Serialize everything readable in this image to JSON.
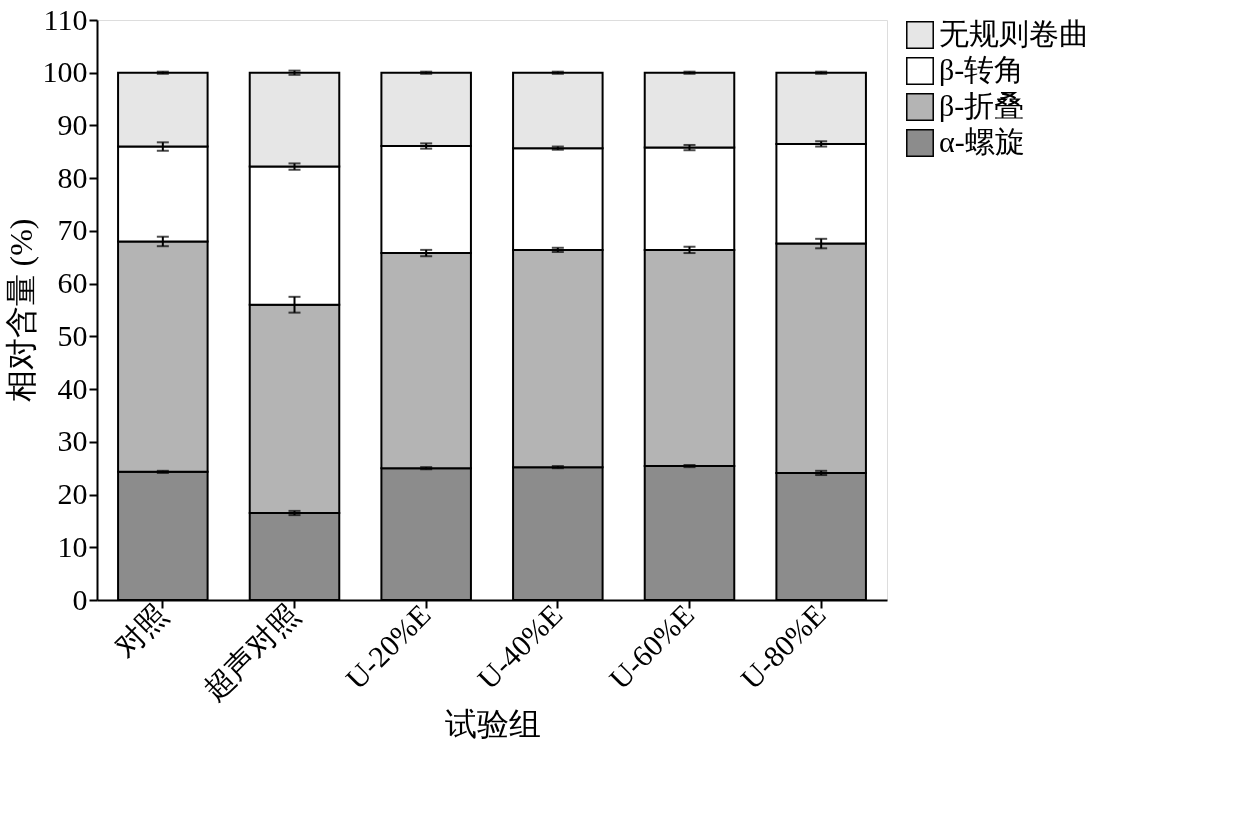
{
  "chart_data": {
    "type": "bar",
    "stacked": true,
    "xlabel": "试验组",
    "ylabel": "相对含量 (%)",
    "categories": [
      "对照",
      "超声对照",
      "U-20%E",
      "U-40%E",
      "U-60%E",
      "U-80%E"
    ],
    "ylim": [
      0,
      110
    ],
    "yticks": [
      0,
      10,
      20,
      30,
      40,
      50,
      60,
      70,
      80,
      90,
      100,
      110
    ],
    "grid": false,
    "legend": "right",
    "series": [
      {
        "name": "α-螺旋",
        "color": "#8c8c8c",
        "values": [
          24.3,
          16.5,
          25.0,
          25.2,
          25.4,
          24.1
        ],
        "errors": [
          0.2,
          0.4,
          0.2,
          0.2,
          0.2,
          0.4
        ]
      },
      {
        "name": "β-折叠",
        "color": "#b4b4b4",
        "values": [
          43.7,
          39.5,
          40.8,
          41.2,
          41.0,
          43.5
        ],
        "errors": [
          0.9,
          1.5,
          0.6,
          0.4,
          0.6,
          0.9
        ]
      },
      {
        "name": "β-转角",
        "color": "#ffffff",
        "values": [
          18.0,
          26.2,
          20.3,
          19.3,
          19.4,
          18.9
        ],
        "errors": [
          0.8,
          0.6,
          0.5,
          0.3,
          0.5,
          0.5
        ]
      },
      {
        "name": "无规则卷曲",
        "color": "#e6e6e6",
        "values": [
          14.0,
          17.8,
          13.9,
          14.3,
          14.2,
          13.5
        ],
        "errors": [
          0.2,
          0.4,
          0.2,
          0.2,
          0.2,
          0.2
        ]
      }
    ]
  }
}
